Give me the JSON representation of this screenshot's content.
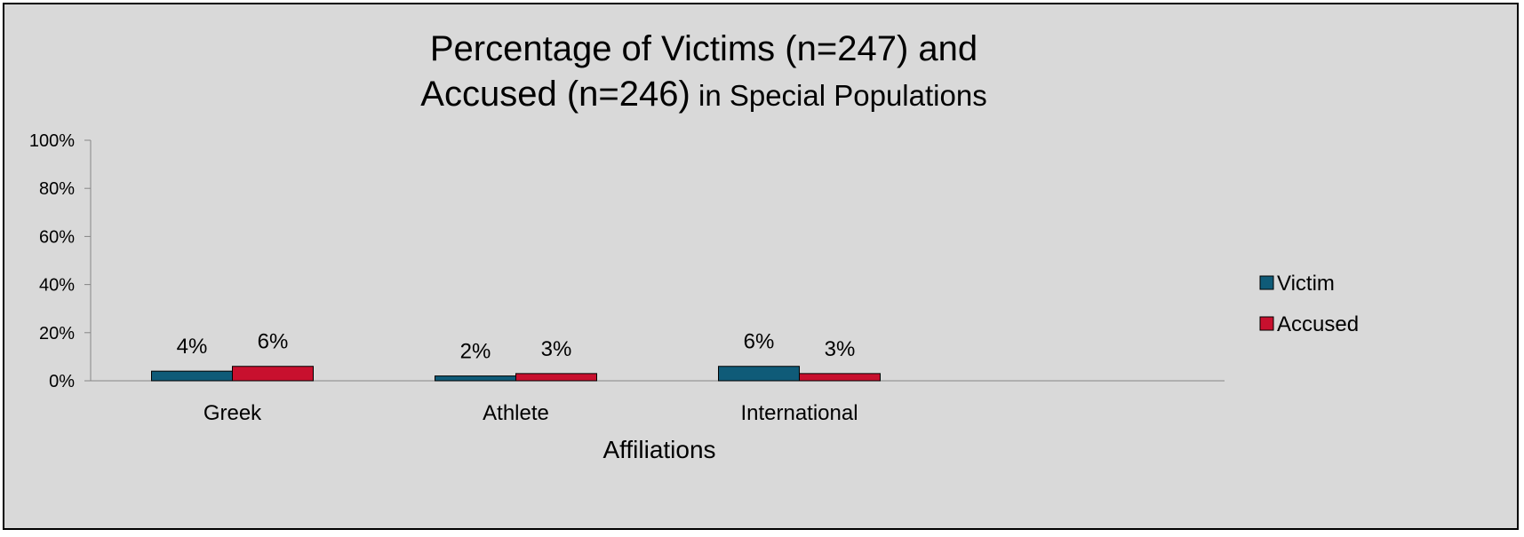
{
  "chart_data": {
    "type": "bar",
    "title_line1": "Percentage of Victims (n=247) and",
    "title_line2_main": "Accused (n=246)",
    "title_line2_rest": " in Special Populations",
    "xlabel": "Affiliations",
    "ylabel": "",
    "categories": [
      "Greek",
      "Athlete",
      "International"
    ],
    "ylim": [
      0,
      100
    ],
    "yticks": [
      "0%",
      "20%",
      "40%",
      "60%",
      "80%",
      "100%"
    ],
    "legend_position": "right",
    "grid": false,
    "series": [
      {
        "name": "Victim",
        "color": "#0f5b78",
        "values": [
          4,
          2,
          6
        ],
        "labels": [
          "4%",
          "2%",
          "6%"
        ]
      },
      {
        "name": "Accused",
        "color": "#c8102e",
        "values": [
          6,
          3,
          3
        ],
        "labels": [
          "6%",
          "3%",
          "3%"
        ]
      }
    ]
  }
}
